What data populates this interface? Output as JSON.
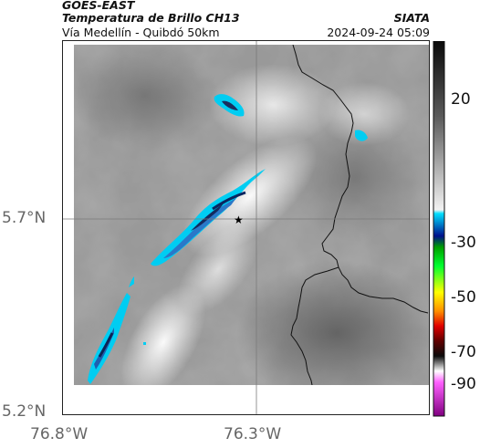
{
  "header": {
    "satellite": "GOES-EAST",
    "product": "Temperatura de Brillo CH13",
    "organization": "SIATA",
    "region": "Vía Medellín - Quibdó 50km",
    "datetime": "2024-09-24 05:09"
  },
  "map": {
    "lat_ticks": [
      "5.7°N",
      "5.2°N"
    ],
    "lon_ticks": [
      "76.8°W",
      "76.3°W"
    ],
    "marker": "star"
  },
  "colorbar": {
    "ticks": [
      "20",
      "-30",
      "-50",
      "-70",
      "-90"
    ],
    "unit_hint": "°C"
  },
  "colors": {
    "cold_cloud": "#00c8f0",
    "deep_cloud": "#123a7a",
    "background_gray": "#8c8c8c",
    "border_line": "#111111"
  }
}
